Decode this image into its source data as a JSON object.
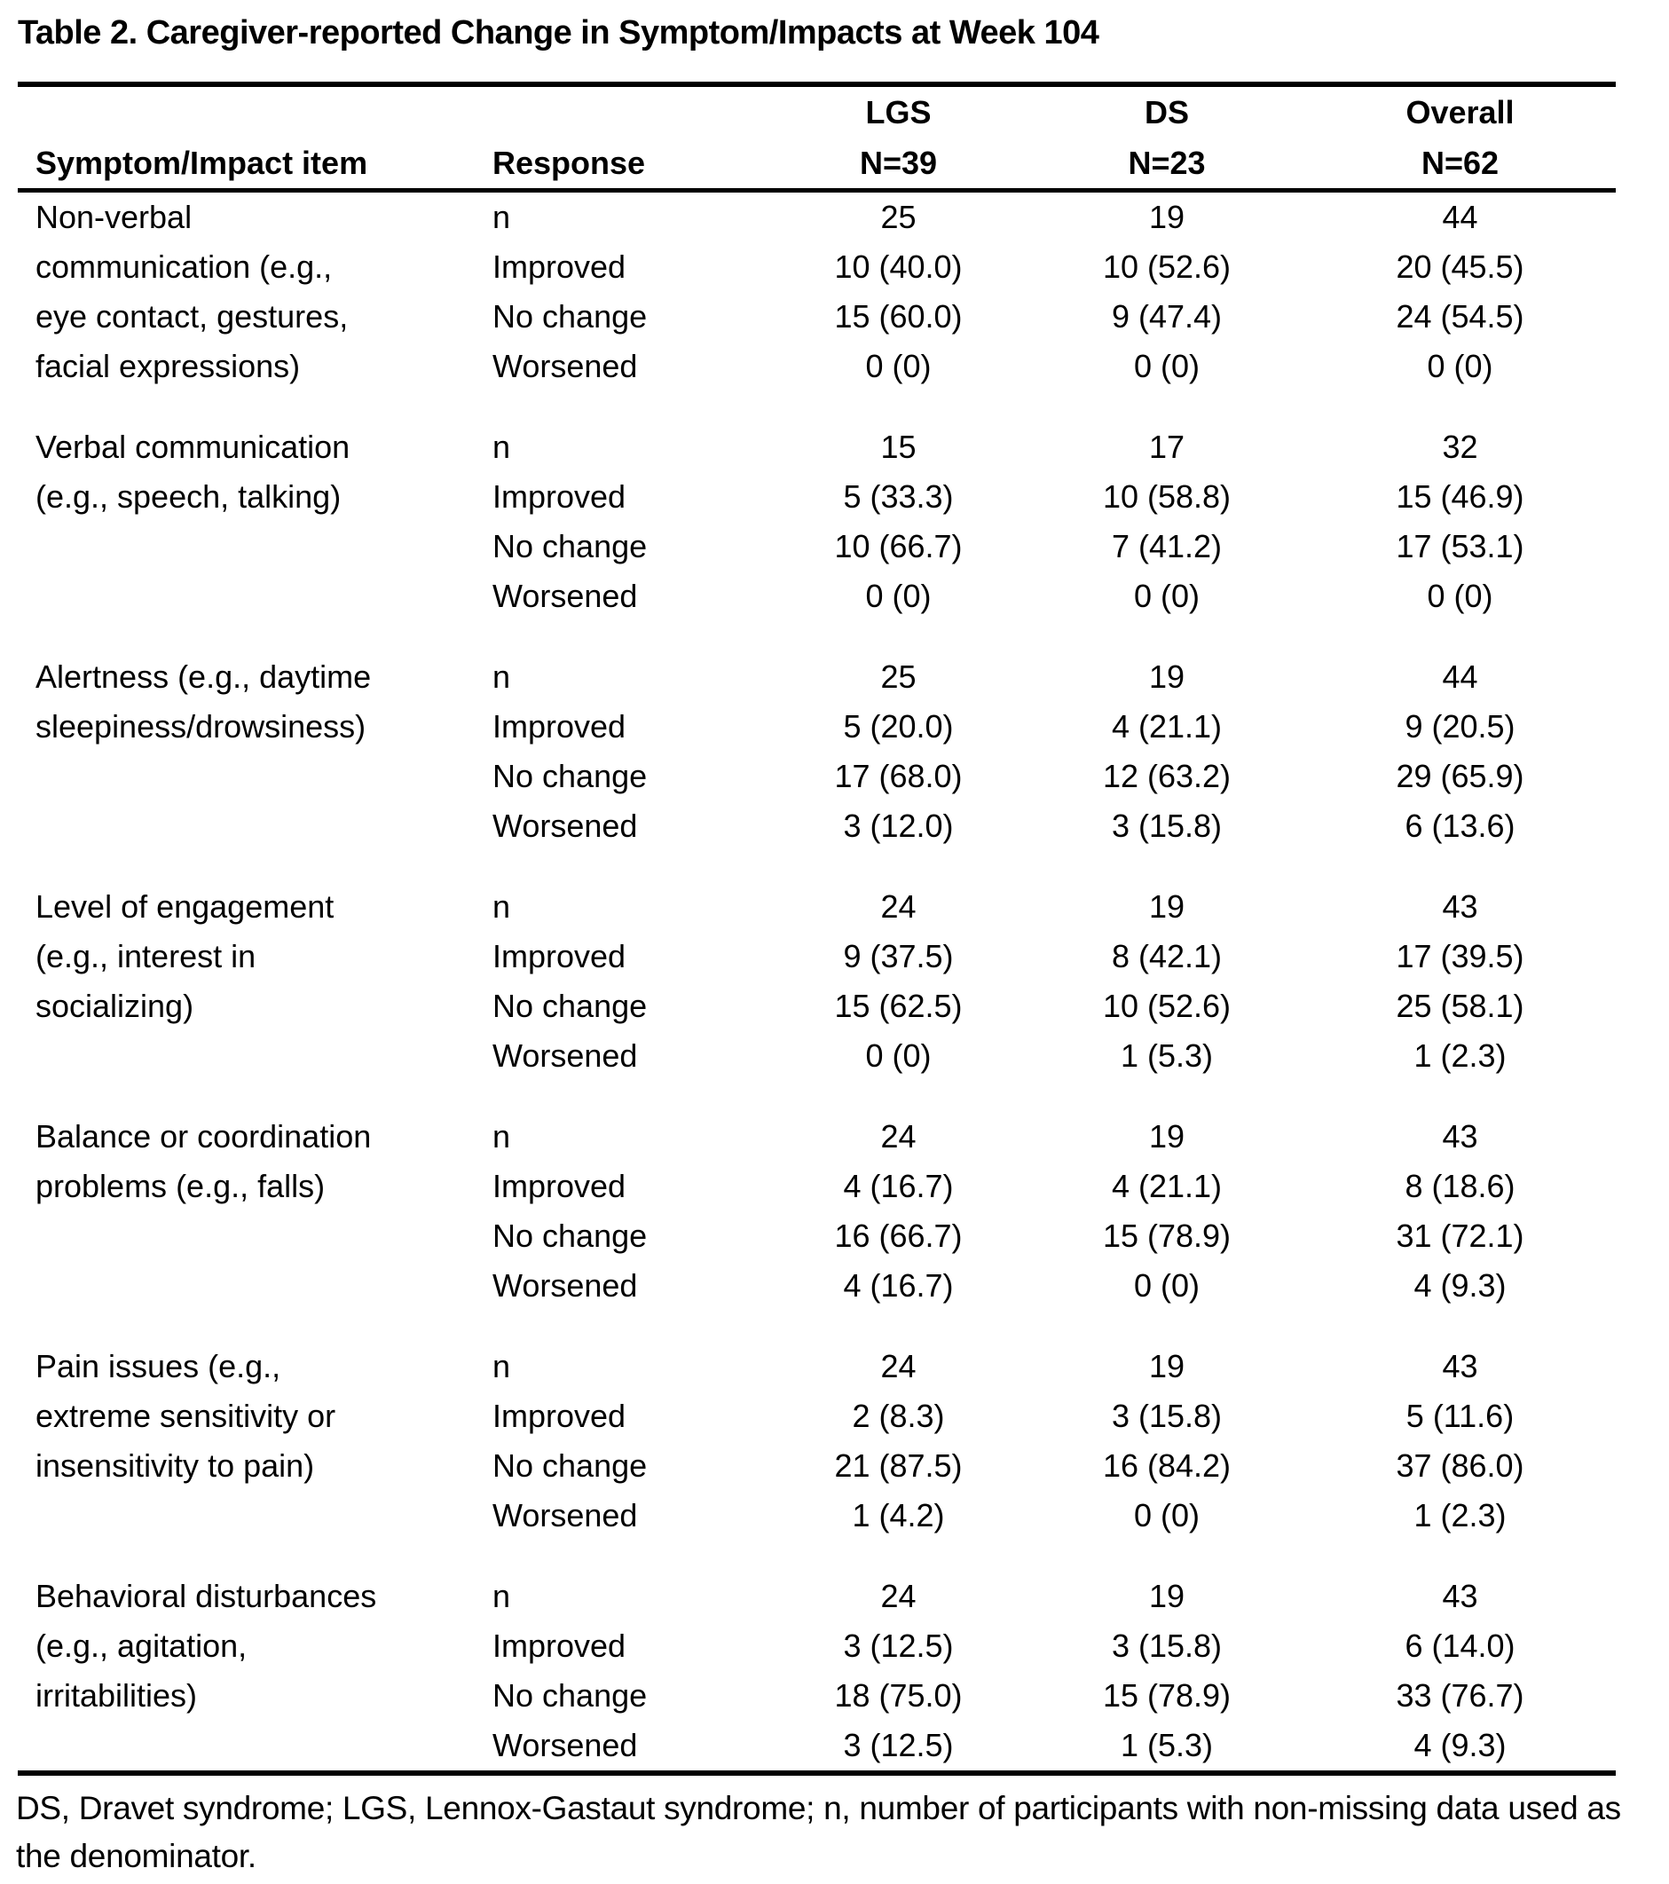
{
  "title": "Table 2. Caregiver-reported Change in Symptom/Impacts at Week 104",
  "table": {
    "header": {
      "item_col": "Symptom/Impact item",
      "response_col": "Response",
      "cohorts": [
        {
          "label": "LGS",
          "n": "N=39"
        },
        {
          "label": "DS",
          "n": "N=23"
        },
        {
          "label": "Overall",
          "n": "N=62"
        }
      ]
    },
    "groups": [
      {
        "item_lines": [
          "Non-verbal",
          "communication (e.g.,",
          "eye contact, gestures,",
          "facial expressions)"
        ],
        "rows": [
          {
            "response": "n",
            "lgs": "25",
            "ds": "19",
            "overall": "44"
          },
          {
            "response": "Improved",
            "lgs": "10 (40.0)",
            "ds": "10 (52.6)",
            "overall": "20 (45.5)"
          },
          {
            "response": "No change",
            "lgs": "15 (60.0)",
            "ds": "9 (47.4)",
            "overall": "24 (54.5)"
          },
          {
            "response": "Worsened",
            "lgs": "0 (0)",
            "ds": "0 (0)",
            "overall": "0 (0)"
          }
        ]
      },
      {
        "item_lines": [
          "Verbal communication",
          "(e.g., speech, talking)"
        ],
        "rows": [
          {
            "response": "n",
            "lgs": "15",
            "ds": "17",
            "overall": "32"
          },
          {
            "response": "Improved",
            "lgs": "5 (33.3)",
            "ds": "10 (58.8)",
            "overall": "15 (46.9)"
          },
          {
            "response": "No change",
            "lgs": "10 (66.7)",
            "ds": "7 (41.2)",
            "overall": "17 (53.1)"
          },
          {
            "response": "Worsened",
            "lgs": "0 (0)",
            "ds": "0 (0)",
            "overall": "0 (0)"
          }
        ]
      },
      {
        "item_lines": [
          "Alertness (e.g., daytime",
          "sleepiness/drowsiness)"
        ],
        "rows": [
          {
            "response": "n",
            "lgs": "25",
            "ds": "19",
            "overall": "44"
          },
          {
            "response": "Improved",
            "lgs": "5 (20.0)",
            "ds": "4 (21.1)",
            "overall": "9 (20.5)"
          },
          {
            "response": "No change",
            "lgs": "17 (68.0)",
            "ds": "12 (63.2)",
            "overall": "29 (65.9)"
          },
          {
            "response": "Worsened",
            "lgs": "3 (12.0)",
            "ds": "3 (15.8)",
            "overall": "6 (13.6)"
          }
        ]
      },
      {
        "item_lines": [
          "Level of engagement",
          "(e.g., interest in",
          "socializing)"
        ],
        "rows": [
          {
            "response": "n",
            "lgs": "24",
            "ds": "19",
            "overall": "43"
          },
          {
            "response": "Improved",
            "lgs": "9 (37.5)",
            "ds": "8 (42.1)",
            "overall": "17 (39.5)"
          },
          {
            "response": "No change",
            "lgs": "15 (62.5)",
            "ds": "10 (52.6)",
            "overall": "25 (58.1)"
          },
          {
            "response": "Worsened",
            "lgs": "0 (0)",
            "ds": "1 (5.3)",
            "overall": "1 (2.3)"
          }
        ]
      },
      {
        "item_lines": [
          "Balance or coordination",
          "problems (e.g., falls)"
        ],
        "rows": [
          {
            "response": "n",
            "lgs": "24",
            "ds": "19",
            "overall": "43"
          },
          {
            "response": "Improved",
            "lgs": "4 (16.7)",
            "ds": "4 (21.1)",
            "overall": "8 (18.6)"
          },
          {
            "response": "No change",
            "lgs": "16 (66.7)",
            "ds": "15 (78.9)",
            "overall": "31 (72.1)"
          },
          {
            "response": "Worsened",
            "lgs": "4 (16.7)",
            "ds": "0 (0)",
            "overall": "4 (9.3)"
          }
        ]
      },
      {
        "item_lines": [
          "Pain issues (e.g.,",
          "extreme sensitivity or",
          "insensitivity to pain)"
        ],
        "rows": [
          {
            "response": "n",
            "lgs": "24",
            "ds": "19",
            "overall": "43"
          },
          {
            "response": "Improved",
            "lgs": "2 (8.3)",
            "ds": "3 (15.8)",
            "overall": "5 (11.6)"
          },
          {
            "response": "No change",
            "lgs": "21 (87.5)",
            "ds": "16 (84.2)",
            "overall": "37 (86.0)"
          },
          {
            "response": "Worsened",
            "lgs": "1 (4.2)",
            "ds": "0 (0)",
            "overall": "1 (2.3)"
          }
        ]
      },
      {
        "item_lines": [
          "Behavioral disturbances",
          "(e.g., agitation,",
          "irritabilities)"
        ],
        "rows": [
          {
            "response": "n",
            "lgs": "24",
            "ds": "19",
            "overall": "43"
          },
          {
            "response": "Improved",
            "lgs": "3 (12.5)",
            "ds": "3 (15.8)",
            "overall": "6 (14.0)"
          },
          {
            "response": "No change",
            "lgs": "18 (75.0)",
            "ds": "15 (78.9)",
            "overall": "33 (76.7)"
          },
          {
            "response": "Worsened",
            "lgs": "3 (12.5)",
            "ds": "1 (5.3)",
            "overall": "4 (9.3)"
          }
        ]
      }
    ]
  },
  "footnote": "DS, Dravet syndrome; LGS, Lennox-Gastaut syndrome; n, number of participants with non-missing data used as the denominator."
}
